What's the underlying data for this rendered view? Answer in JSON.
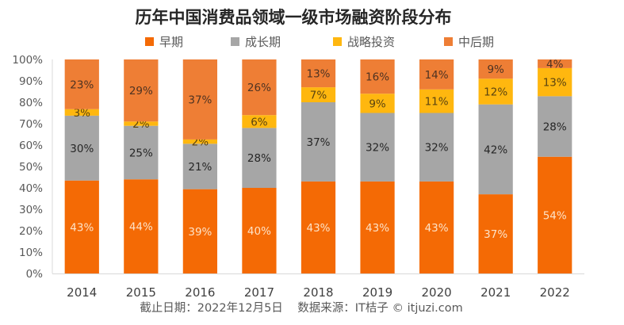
{
  "chart_data": {
    "type": "bar",
    "stacked": true,
    "normalized": true,
    "title": "历年中国消费品领域一级市场融资阶段分布",
    "xlabel": "",
    "ylabel": "",
    "ylim": [
      0,
      100
    ],
    "yticks": [
      "0%",
      "10%",
      "20%",
      "30%",
      "40%",
      "50%",
      "60%",
      "70%",
      "80%",
      "90%",
      "100%"
    ],
    "grid": false,
    "legend_position": "top",
    "categories": [
      "2014",
      "2015",
      "2016",
      "2017",
      "2018",
      "2019",
      "2020",
      "2021",
      "2022"
    ],
    "series": [
      {
        "name": "早期",
        "color": "#F46A05",
        "label_color": "#FDE3C8",
        "values": [
          43,
          44,
          39,
          40,
          43,
          43,
          43,
          37,
          54
        ]
      },
      {
        "name": "成长期",
        "color": "#A6A6A6",
        "label_color": "#262626",
        "values": [
          30,
          25,
          21,
          28,
          37,
          32,
          32,
          42,
          28
        ]
      },
      {
        "name": "战略投资",
        "color": "#FFB70F",
        "label_color": "#5A4310",
        "values": [
          3,
          2,
          2,
          6,
          7,
          9,
          11,
          12,
          13
        ]
      },
      {
        "name": "中后期",
        "color": "#EE7E35",
        "label_color": "#4E3322",
        "values": [
          23,
          29,
          37,
          26,
          13,
          16,
          14,
          9,
          4
        ]
      }
    ],
    "value_suffix": "%",
    "footnote": "截止日期：2022年12月5日    数据来源：IT桔子 © itjuzi.com"
  }
}
